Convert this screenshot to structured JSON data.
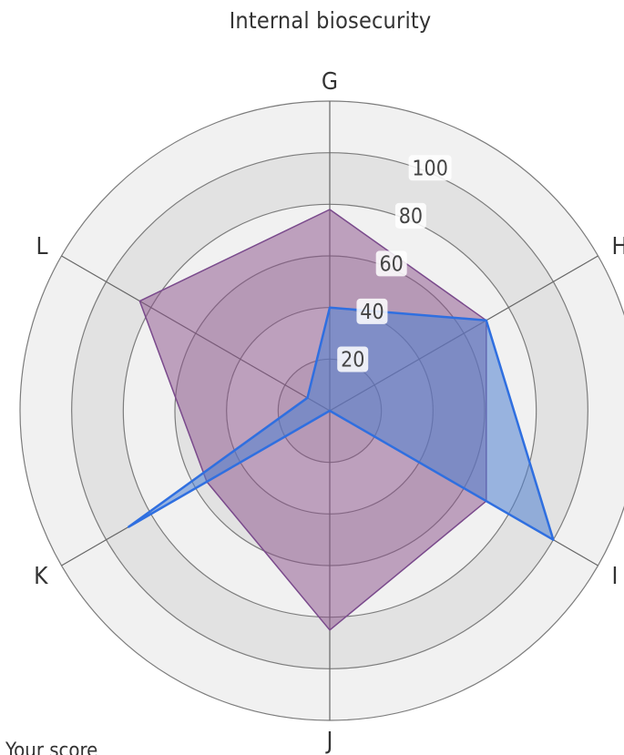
{
  "chart_data": {
    "type": "radar",
    "title": "Internal biosecurity",
    "axes": [
      "G",
      "H",
      "I",
      "J",
      "K",
      "L"
    ],
    "radial_ticks": [
      "20",
      "40",
      "60",
      "80",
      "100"
    ],
    "rlim": [
      0,
      120
    ],
    "grid": true,
    "series": [
      {
        "name": "Your score",
        "values": [
          40,
          70,
          100,
          0,
          90,
          10
        ],
        "fill": "#4f7fd0",
        "stroke": "#2f6fe0"
      },
      {
        "values": [
          78,
          70,
          70,
          85,
          55,
          85
        ],
        "fill": "#8a4f8a",
        "stroke": "#7a4a8c"
      }
    ],
    "legend_placement": "bottom-left"
  },
  "colors": {
    "band_dark": "#e2e2e2",
    "band_light": "#f1f1f1",
    "ring_stroke": "#7c7c7c",
    "spoke_stroke": "#666666"
  }
}
